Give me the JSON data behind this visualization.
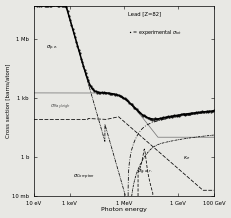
{
  "title": "Lead [Z=82]",
  "legend_dot": "• = experimental σ",
  "legend_tot": "tot",
  "xlabel": "Photon energy",
  "ylabel": "Cross section [barns/atom]",
  "background_color": "#e8e8e4",
  "x_ticks": [
    10,
    1000,
    1000000,
    1000000000,
    100000000000
  ],
  "x_labels": [
    "10 eV",
    "1 keV",
    "1 MeV",
    "1 GeV",
    "100 GeV"
  ],
  "y_ticks": [
    0.01,
    1.0,
    1000.0,
    1000000.0
  ],
  "y_labels": [
    "10 mb",
    "1 b",
    "1 kb",
    "1 Mb"
  ]
}
